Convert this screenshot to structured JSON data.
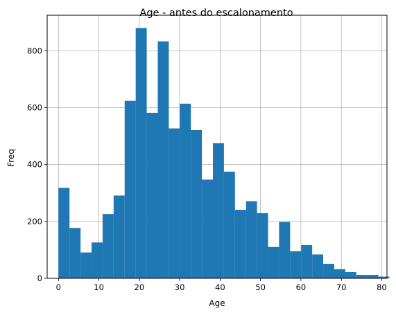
{
  "chart_data": {
    "type": "bar",
    "title": "Age - antes do escalonamento",
    "xlabel": "Age",
    "ylabel": "Freq",
    "xlim": [
      -2.8,
      81.3
    ],
    "ylim": [
      0,
      925
    ],
    "grid": true,
    "bar_color": "#1f77b4",
    "grid_color": "#b0b0b0",
    "bin_start": 0,
    "bin_width": 2.73,
    "values": [
      318,
      177,
      91,
      126,
      226,
      291,
      624,
      880,
      582,
      833,
      527,
      614,
      521,
      347,
      475,
      375,
      241,
      271,
      229,
      110,
      198,
      95,
      117,
      84,
      51,
      32,
      22,
      12,
      12,
      6
    ],
    "xticks": [
      0,
      10,
      20,
      30,
      40,
      50,
      60,
      70,
      80
    ],
    "yticks": [
      0,
      200,
      400,
      600,
      800
    ]
  }
}
